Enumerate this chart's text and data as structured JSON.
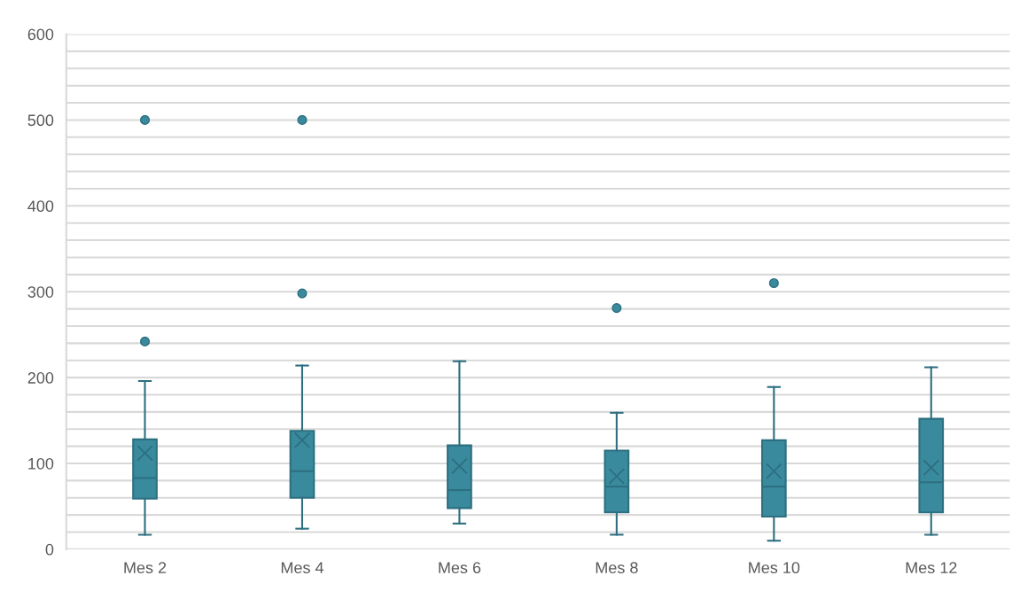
{
  "chart_data": {
    "type": "box",
    "categories": [
      "Mes 2",
      "Mes 4",
      "Mes 6",
      "Mes 8",
      "Mes 10",
      "Mes 12"
    ],
    "boxes": [
      {
        "low": 17,
        "q1": 59,
        "median": 83,
        "q3": 128,
        "high": 196,
        "mean": 112,
        "outliers": [
          242,
          500
        ]
      },
      {
        "low": 24,
        "q1": 60,
        "median": 91,
        "q3": 138,
        "high": 214,
        "mean": 127,
        "outliers": [
          298,
          500
        ]
      },
      {
        "low": 30,
        "q1": 48,
        "median": 69,
        "q3": 121,
        "high": 219,
        "mean": 97
      },
      {
        "low": 17,
        "q1": 43,
        "median": 73,
        "q3": 115,
        "high": 159,
        "mean": 85,
        "outliers": [
          281
        ]
      },
      {
        "low": 10,
        "q1": 38,
        "median": 73,
        "q3": 127,
        "high": 189,
        "mean": 91,
        "outliers": [
          310
        ]
      },
      {
        "low": 17,
        "q1": 43,
        "median": 78,
        "q3": 152,
        "high": 212,
        "mean": 95
      }
    ],
    "color": "#3a8a9e",
    "ylim": [
      0,
      600
    ],
    "yticks": [
      0,
      {
        "value": 20,
        "label": null
      },
      {
        "value": 40,
        "label": null
      },
      {
        "value": 60,
        "label": null
      },
      {
        "value": 80,
        "label": null
      },
      100,
      {
        "value": 120,
        "label": null
      },
      {
        "value": 140,
        "label": null
      },
      {
        "value": 160,
        "label": null
      },
      {
        "value": 180,
        "label": null
      },
      200,
      {
        "value": 220,
        "label": null
      },
      {
        "value": 240,
        "label": null
      },
      {
        "value": 260,
        "label": null
      },
      {
        "value": 280,
        "label": null
      },
      300,
      {
        "value": 320,
        "label": null
      },
      {
        "value": 340,
        "label": null
      },
      {
        "value": 360,
        "label": null
      },
      {
        "value": 380,
        "label": null
      },
      400,
      {
        "value": 420,
        "label": null
      },
      {
        "value": 440,
        "label": null
      },
      {
        "value": 460,
        "label": null
      },
      {
        "value": 480,
        "label": null
      },
      500,
      {
        "value": 520,
        "label": null
      },
      {
        "value": 540,
        "label": null
      },
      {
        "value": 560,
        "label": null
      },
      {
        "value": 580,
        "label": null
      },
      600
    ],
    "grid": "y"
  }
}
